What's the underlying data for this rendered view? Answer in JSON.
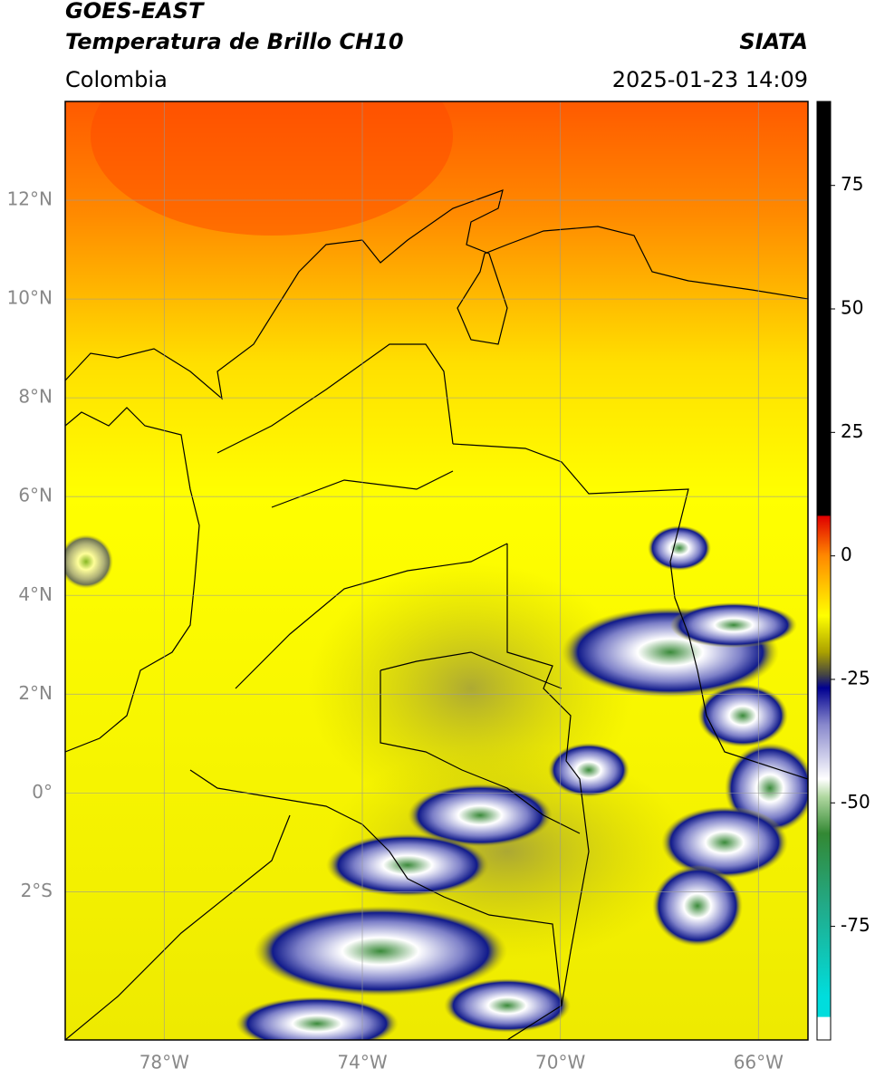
{
  "header": {
    "title": "GOES-EAST",
    "subtitle": "Temperatura de Brillo CH10",
    "source": "SIATA",
    "region": "Colombia",
    "datetime": "2025-01-23 14:09"
  },
  "map": {
    "xlim": [
      -80,
      -65
    ],
    "ylim": [
      -5,
      14
    ],
    "lon_ticks": [
      {
        "value": -78,
        "label": "78°W"
      },
      {
        "value": -74,
        "label": "74°W"
      },
      {
        "value": -70,
        "label": "70°W"
      },
      {
        "value": -66,
        "label": "66°W"
      }
    ],
    "lat_ticks": [
      {
        "value": 12,
        "label": "12°N"
      },
      {
        "value": 10,
        "label": "10°N"
      },
      {
        "value": 8,
        "label": "8°N"
      },
      {
        "value": 6,
        "label": "6°N"
      },
      {
        "value": 4,
        "label": "4°N"
      },
      {
        "value": 2,
        "label": "2°N"
      },
      {
        "value": 0,
        "label": "0°"
      },
      {
        "value": -2,
        "label": "2°S"
      }
    ]
  },
  "colorbar": {
    "lim": [
      -98,
      92
    ],
    "ticks": [
      75,
      50,
      25,
      0,
      -25,
      -50,
      -75
    ]
  }
}
